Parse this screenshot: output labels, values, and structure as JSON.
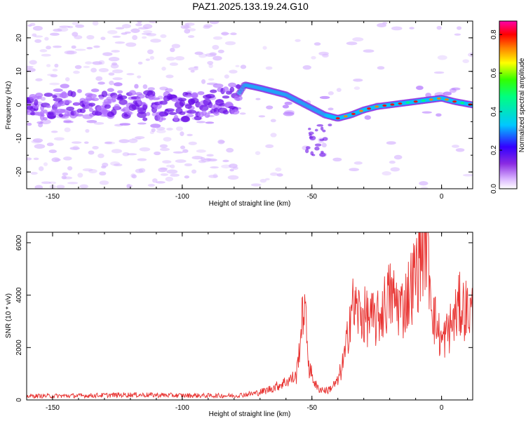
{
  "figure_title": "PAZ1.2025.133.19.24.G10",
  "chart_data": [
    {
      "type": "heatmap",
      "xlabel": "Height of straight line (km)",
      "ylabel": "Frequency (Hz)",
      "xlim": [
        -160,
        12
      ],
      "ylim": [
        -25,
        25
      ],
      "x_ticks": [
        -150,
        -100,
        -50,
        0
      ],
      "y_ticks": [
        -20,
        -10,
        0,
        10,
        20
      ],
      "ridge": [
        {
          "x": -158,
          "y": -1
        },
        {
          "x": -150,
          "y": 0
        },
        {
          "x": -140,
          "y": 0.5
        },
        {
          "x": -130,
          "y": 1
        },
        {
          "x": -120,
          "y": 0
        },
        {
          "x": -110,
          "y": -0.5
        },
        {
          "x": -100,
          "y": -1
        },
        {
          "x": -90,
          "y": 0.5
        },
        {
          "x": -80,
          "y": 1
        },
        {
          "x": -76,
          "y": 6
        },
        {
          "x": -70,
          "y": 5
        },
        {
          "x": -65,
          "y": 4
        },
        {
          "x": -60,
          "y": 3
        },
        {
          "x": -55,
          "y": 1
        },
        {
          "x": -50,
          "y": -1
        },
        {
          "x": -45,
          "y": -3
        },
        {
          "x": -40,
          "y": -4
        },
        {
          "x": -35,
          "y": -3
        },
        {
          "x": -30,
          "y": -1.5
        },
        {
          "x": -25,
          "y": -0.5
        },
        {
          "x": -20,
          "y": 0
        },
        {
          "x": -15,
          "y": 0.5
        },
        {
          "x": -10,
          "y": 1
        },
        {
          "x": -5,
          "y": 1.5
        },
        {
          "x": 0,
          "y": 2
        },
        {
          "x": 5,
          "y": 1
        },
        {
          "x": 12,
          "y": 0
        }
      ],
      "colorbar": {
        "label": "Normalized spectral amplitude",
        "range": [
          0,
          0.87
        ],
        "ticks": [
          0.0,
          0.2,
          0.4,
          0.6,
          0.8
        ],
        "colors": [
          "#ffffff",
          "#d9b3ff",
          "#8a2be2",
          "#3300ff",
          "#00c8ff",
          "#00ff80",
          "#33ff00",
          "#ffff00",
          "#ff8000",
          "#ff0000",
          "#ff00aa"
        ]
      },
      "colors": {
        "low_noise": "#d8b8ff",
        "noise": "#b070ff",
        "band": "#6a0de8"
      }
    },
    {
      "type": "line",
      "xlabel": "Height of straight line (km)",
      "ylabel": "SNR (10 * v/v)",
      "xlim": [
        -160,
        12
      ],
      "ylim": [
        0,
        6400
      ],
      "x_ticks": [
        -150,
        -100,
        -50,
        0
      ],
      "y_ticks": [
        0,
        2000,
        4000,
        6000
      ],
      "line_color": "#e8312f",
      "points": [
        {
          "x": -160,
          "y": 150
        },
        {
          "x": -140,
          "y": 160
        },
        {
          "x": -120,
          "y": 200
        },
        {
          "x": -100,
          "y": 170
        },
        {
          "x": -80,
          "y": 160
        },
        {
          "x": -72,
          "y": 250
        },
        {
          "x": -68,
          "y": 350
        },
        {
          "x": -64,
          "y": 500
        },
        {
          "x": -60,
          "y": 700
        },
        {
          "x": -56,
          "y": 900
        },
        {
          "x": -53,
          "y": 3750
        },
        {
          "x": -51,
          "y": 1200
        },
        {
          "x": -48,
          "y": 450
        },
        {
          "x": -44,
          "y": 350
        },
        {
          "x": -40,
          "y": 700
        },
        {
          "x": -37,
          "y": 1800
        },
        {
          "x": -35,
          "y": 3600
        },
        {
          "x": -30,
          "y": 3200
        },
        {
          "x": -25,
          "y": 3000
        },
        {
          "x": -20,
          "y": 4000
        },
        {
          "x": -15,
          "y": 3500
        },
        {
          "x": -10,
          "y": 4800
        },
        {
          "x": -6,
          "y": 6400
        },
        {
          "x": -3,
          "y": 3200
        },
        {
          "x": 0,
          "y": 2200
        },
        {
          "x": 4,
          "y": 2900
        },
        {
          "x": 7,
          "y": 3600
        },
        {
          "x": 12,
          "y": 3300
        }
      ]
    }
  ]
}
